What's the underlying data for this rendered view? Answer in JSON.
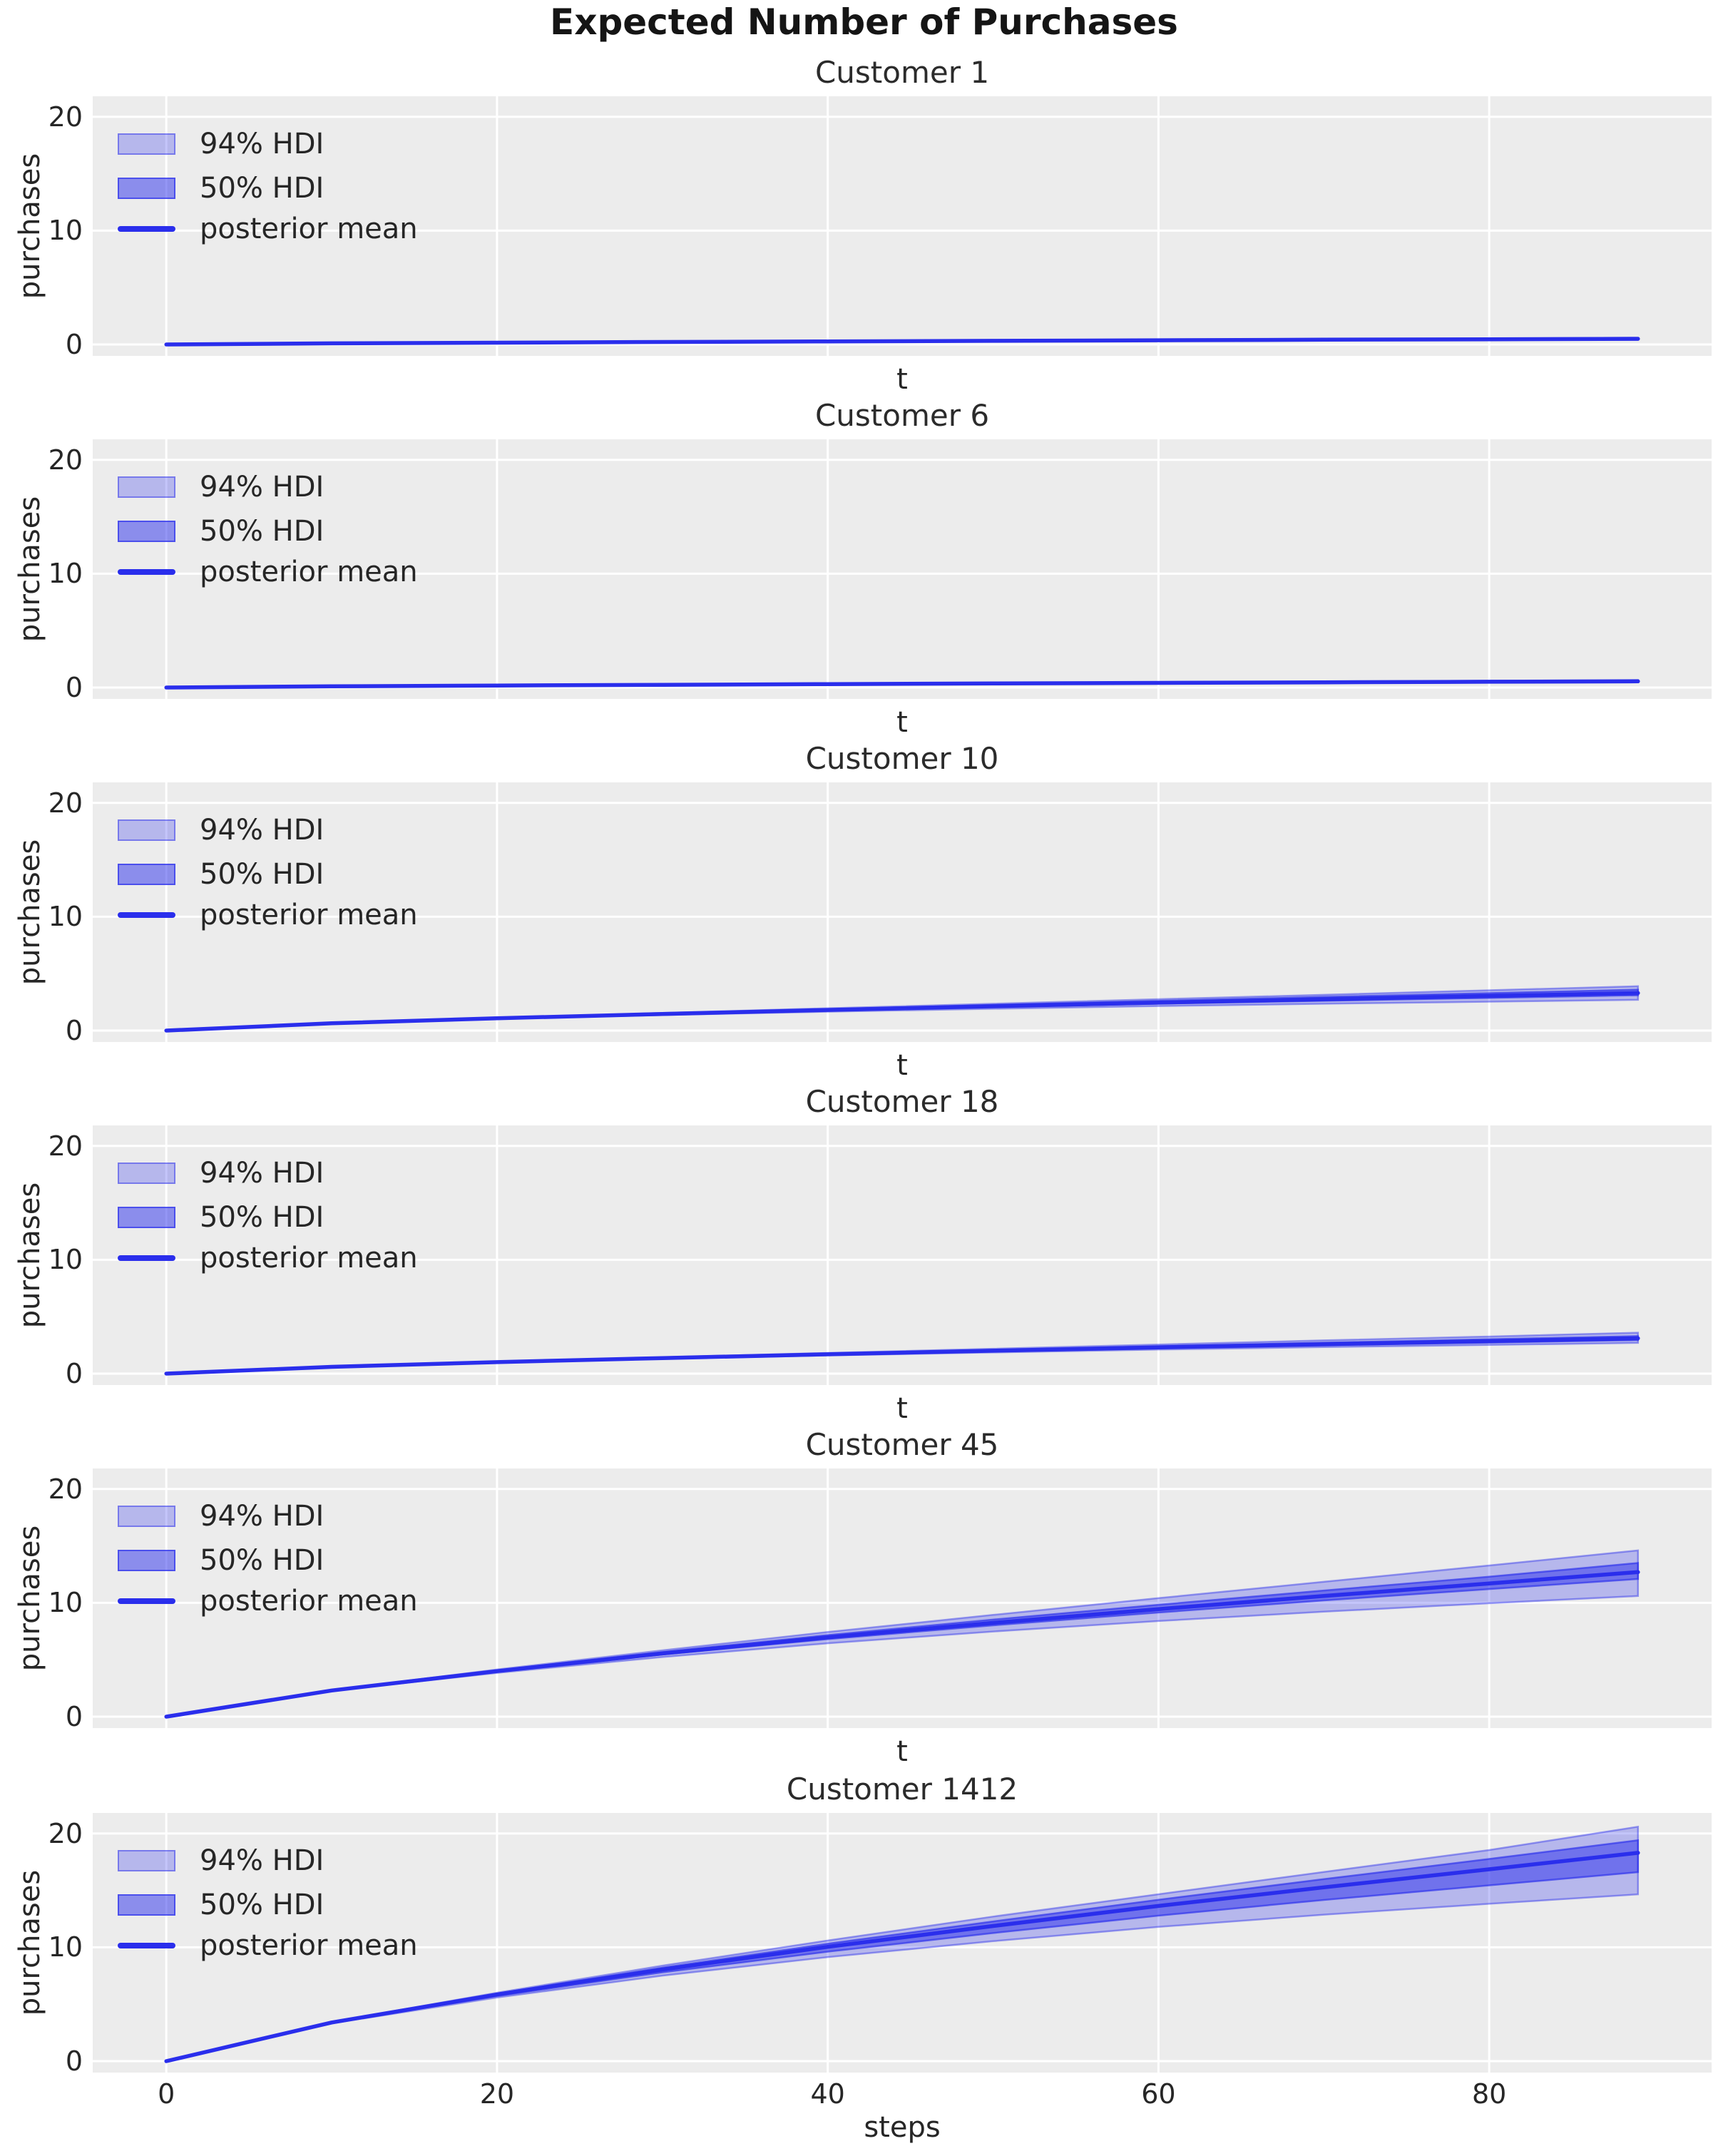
{
  "figure": {
    "suptitle": "Expected Number of Purchases"
  },
  "axes": {
    "ylabel": "purchases",
    "ytick_labels": [
      "0",
      "10",
      "20"
    ],
    "yticks": [
      0,
      10,
      20
    ],
    "xtick_labels": [
      "0",
      "20",
      "40",
      "60",
      "80"
    ],
    "xticks": [
      0,
      20,
      40,
      60,
      80
    ],
    "xlim": [
      -4.45,
      93.45
    ],
    "ylim": [
      -1.0,
      21.8
    ],
    "grid": "on",
    "xticklabels_visible_only_on_bottom": true
  },
  "legend": {
    "position": "upper left",
    "items": [
      {
        "label": "94% HDI",
        "swatch": "band-light"
      },
      {
        "label": "50% HDI",
        "swatch": "band-dark"
      },
      {
        "label": "posterior mean",
        "swatch": "line"
      }
    ]
  },
  "palette": {
    "line": "#2a2eec",
    "hdi94_fill": "rgba(42,46,236,0.28)",
    "hdi94_edge": "rgba(42,46,236,0.45)",
    "hdi50_fill": "rgba(42,46,236,0.50)",
    "hdi50_edge": "rgba(42,46,236,0.65)",
    "plot_bg": "#ececec",
    "grid": "#ffffff",
    "text": "#262626"
  },
  "chart_data": [
    {
      "type": "line",
      "title": "Customer 1",
      "xlabel": "t",
      "ylabel": "purchases",
      "x": [
        0,
        10,
        20,
        30,
        40,
        50,
        60,
        70,
        80,
        89
      ],
      "mean": [
        0,
        0.1,
        0.16,
        0.22,
        0.27,
        0.32,
        0.37,
        0.42,
        0.46,
        0.5
      ],
      "hdi50_lower": [
        0,
        0.1,
        0.16,
        0.21,
        0.26,
        0.31,
        0.35,
        0.4,
        0.44,
        0.47
      ],
      "hdi50_upper": [
        0,
        0.1,
        0.16,
        0.23,
        0.28,
        0.33,
        0.39,
        0.45,
        0.49,
        0.54
      ],
      "hdi94_lower": [
        0,
        0.1,
        0.15,
        0.21,
        0.25,
        0.29,
        0.33,
        0.37,
        0.39,
        0.42
      ],
      "hdi94_upper": [
        0,
        0.1,
        0.17,
        0.24,
        0.29,
        0.36,
        0.42,
        0.49,
        0.53,
        0.6
      ]
    },
    {
      "type": "line",
      "title": "Customer 6",
      "xlabel": "t",
      "ylabel": "purchases",
      "x": [
        0,
        10,
        20,
        30,
        40,
        50,
        60,
        70,
        80,
        89
      ],
      "mean": [
        0,
        0.11,
        0.18,
        0.24,
        0.3,
        0.36,
        0.41,
        0.46,
        0.51,
        0.55
      ],
      "hdi50_lower": [
        0,
        0.11,
        0.18,
        0.24,
        0.29,
        0.35,
        0.4,
        0.44,
        0.49,
        0.52
      ],
      "hdi50_upper": [
        0,
        0.11,
        0.18,
        0.25,
        0.31,
        0.37,
        0.43,
        0.49,
        0.55,
        0.59
      ],
      "hdi94_lower": [
        0,
        0.11,
        0.17,
        0.23,
        0.28,
        0.33,
        0.37,
        0.4,
        0.44,
        0.46
      ],
      "hdi94_upper": [
        0,
        0.11,
        0.19,
        0.26,
        0.33,
        0.4,
        0.47,
        0.53,
        0.6,
        0.66
      ]
    },
    {
      "type": "line",
      "title": "Customer 10",
      "xlabel": "t",
      "ylabel": "purchases",
      "x": [
        0,
        10,
        20,
        30,
        40,
        50,
        60,
        70,
        80,
        89
      ],
      "mean": [
        0,
        0.64,
        1.08,
        1.46,
        1.81,
        2.14,
        2.46,
        2.75,
        3.04,
        3.3
      ],
      "hdi50_lower": [
        0,
        0.64,
        1.07,
        1.43,
        1.76,
        2.07,
        2.36,
        2.62,
        2.87,
        3.1
      ],
      "hdi50_upper": [
        0,
        0.65,
        1.1,
        1.5,
        1.88,
        2.25,
        2.61,
        2.96,
        3.29,
        3.6
      ],
      "hdi94_lower": [
        0,
        0.63,
        1.04,
        1.37,
        1.66,
        1.92,
        2.16,
        2.36,
        2.54,
        2.7
      ],
      "hdi94_upper": [
        0,
        0.65,
        1.12,
        1.55,
        1.96,
        2.36,
        2.76,
        3.14,
        3.54,
        3.9
      ]
    },
    {
      "type": "line",
      "title": "Customer 18",
      "xlabel": "t",
      "ylabel": "purchases",
      "x": [
        0,
        10,
        20,
        30,
        40,
        50,
        60,
        70,
        80,
        89
      ],
      "mean": [
        0,
        0.6,
        1.01,
        1.37,
        1.7,
        2.01,
        2.31,
        2.59,
        2.85,
        3.1
      ],
      "hdi50_lower": [
        0,
        0.6,
        1.0,
        1.35,
        1.66,
        1.96,
        2.24,
        2.49,
        2.73,
        2.95
      ],
      "hdi50_upper": [
        0,
        0.6,
        1.03,
        1.4,
        1.75,
        2.08,
        2.41,
        2.72,
        3.02,
        3.3
      ],
      "hdi94_lower": [
        0,
        0.59,
        0.98,
        1.31,
        1.6,
        1.86,
        2.11,
        2.33,
        2.52,
        2.7
      ],
      "hdi94_upper": [
        0,
        0.61,
        1.05,
        1.44,
        1.82,
        2.19,
        2.56,
        2.92,
        3.26,
        3.6
      ]
    },
    {
      "type": "line",
      "title": "Customer 45",
      "xlabel": "t",
      "ylabel": "purchases",
      "x": [
        0,
        10,
        20,
        30,
        40,
        50,
        60,
        70,
        80,
        89
      ],
      "mean": [
        0,
        2.3,
        4.0,
        5.55,
        6.97,
        8.24,
        9.45,
        10.6,
        11.7,
        12.7
      ],
      "hdi50_lower": [
        0,
        2.29,
        3.96,
        5.46,
        6.82,
        8.02,
        9.15,
        10.21,
        11.21,
        12.1
      ],
      "hdi50_upper": [
        0,
        2.32,
        4.06,
        5.67,
        7.17,
        8.53,
        9.83,
        11.08,
        12.29,
        13.5
      ],
      "hdi94_lower": [
        0,
        2.26,
        3.85,
        5.24,
        6.45,
        7.48,
        8.4,
        9.22,
        9.96,
        10.6
      ],
      "hdi94_upper": [
        0,
        2.34,
        4.14,
        5.83,
        7.44,
        8.94,
        10.41,
        11.85,
        13.28,
        14.6
      ]
    },
    {
      "type": "line",
      "title": "Customer 1412",
      "xlabel": "steps",
      "ylabel": "purchases",
      "x": [
        0,
        10,
        20,
        30,
        40,
        50,
        60,
        70,
        80,
        89
      ],
      "mean": [
        0,
        3.4,
        5.85,
        8.05,
        10.04,
        11.87,
        13.63,
        15.27,
        16.85,
        18.3
      ],
      "hdi50_lower": [
        0,
        3.36,
        5.73,
        7.8,
        9.62,
        11.25,
        12.78,
        14.16,
        15.44,
        16.6
      ],
      "hdi50_upper": [
        0,
        3.42,
        5.93,
        8.21,
        10.31,
        12.27,
        14.18,
        15.99,
        17.76,
        19.4
      ],
      "hdi94_lower": [
        0,
        3.32,
        5.59,
        7.51,
        9.14,
        10.54,
        11.79,
        12.87,
        13.82,
        14.65
      ],
      "hdi94_upper": [
        0,
        3.44,
        6.01,
        8.39,
        10.6,
        12.7,
        14.66,
        16.62,
        18.54,
        20.59
      ]
    }
  ]
}
